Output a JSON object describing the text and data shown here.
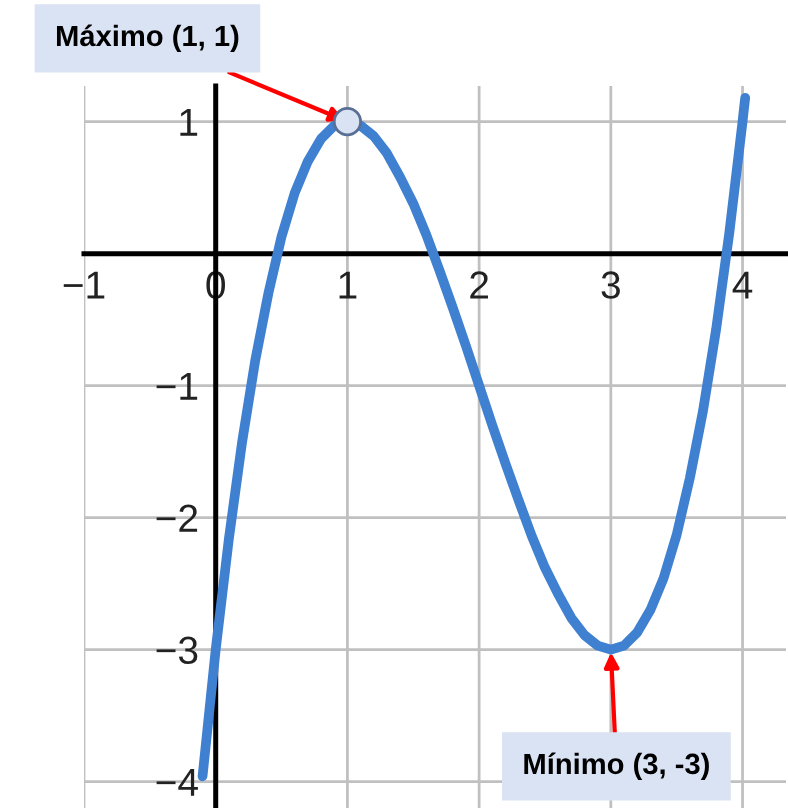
{
  "chart_data": {
    "type": "line",
    "x": [
      -0.1,
      0,
      0.1,
      0.2,
      0.3,
      0.4,
      0.5,
      0.6,
      0.7,
      0.8,
      0.9,
      1.0,
      1.1,
      1.2,
      1.3,
      1.4,
      1.5,
      1.6,
      1.7,
      1.8,
      1.9,
      2.0,
      2.1,
      2.2,
      2.3,
      2.4,
      2.5,
      2.6,
      2.7,
      2.8,
      2.9,
      3.0,
      3.1,
      3.2,
      3.3,
      3.4,
      3.5,
      3.6,
      3.7,
      3.8,
      3.9,
      4.0,
      4.02
    ],
    "series": [
      {
        "color": "#4080d0",
        "values": [
          -3.96,
          -3,
          -2.16,
          -1.43,
          -0.81,
          -0.3,
          0.13,
          0.46,
          0.7,
          0.87,
          0.97,
          1,
          0.97,
          0.89,
          0.76,
          0.58,
          0.38,
          0.14,
          -0.13,
          -0.41,
          -0.7,
          -1,
          -1.3,
          -1.59,
          -1.87,
          -2.14,
          -2.38,
          -2.58,
          -2.76,
          -2.89,
          -2.97,
          -3,
          -2.97,
          -2.87,
          -2.7,
          -2.46,
          -2.13,
          -1.7,
          -1.19,
          -0.57,
          0.16,
          1,
          1.18
        ]
      },
      {
        "type": "scatter",
        "color": "#dae3f3",
        "x": [
          1
        ],
        "values": [
          1
        ],
        "marker": "circle"
      }
    ],
    "annotations": [
      {
        "text": "Máximo (1, 1)",
        "x": 1,
        "y": 1
      },
      {
        "text": "Mínimo (3, -3)",
        "x": 3,
        "y": -3
      }
    ],
    "xlim": [
      -1,
      4.33
    ],
    "ylim": [
      -4.2,
      1.27
    ],
    "xticks": [
      -1,
      0,
      1,
      2,
      3,
      4
    ],
    "yticks": [
      -4,
      -3,
      -2,
      -1,
      {
        "value": 0,
        "label": null
      },
      1
    ],
    "grid": true
  }
}
